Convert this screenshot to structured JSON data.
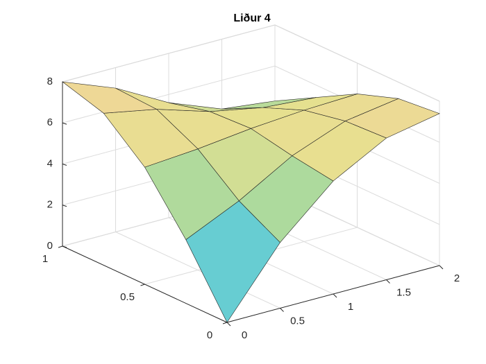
{
  "chart_data": {
    "type": "surface",
    "title": "Liður 4",
    "x": [
      0,
      0.5,
      1,
      1.5,
      2
    ],
    "y": [
      0,
      0.25,
      0.5,
      0.75,
      1
    ],
    "z": [
      [
        0,
        3.2,
        5.5,
        6.9,
        7.4
      ],
      [
        3.1,
        4.3,
        5.8,
        6.8,
        7.2
      ],
      [
        5.7,
        5.9,
        6.2,
        6.4,
        6.5
      ],
      [
        7.4,
        6.9,
        6.1,
        5.6,
        5.4
      ],
      [
        8.0,
        7.0,
        5.6,
        4.6,
        4.3
      ]
    ],
    "xlim": [
      0,
      2
    ],
    "ylim": [
      0,
      1
    ],
    "zlim": [
      0,
      8
    ],
    "xticks": [
      0,
      0.5,
      1,
      1.5,
      2
    ],
    "yticks": [
      0,
      0.5,
      1
    ],
    "zticks": [
      0,
      2,
      4,
      6,
      8
    ],
    "grid": true,
    "colormap": [
      "#7f7fff",
      "#54c8e8",
      "#8fd6a4",
      "#e6e08f",
      "#f2d49a"
    ]
  }
}
